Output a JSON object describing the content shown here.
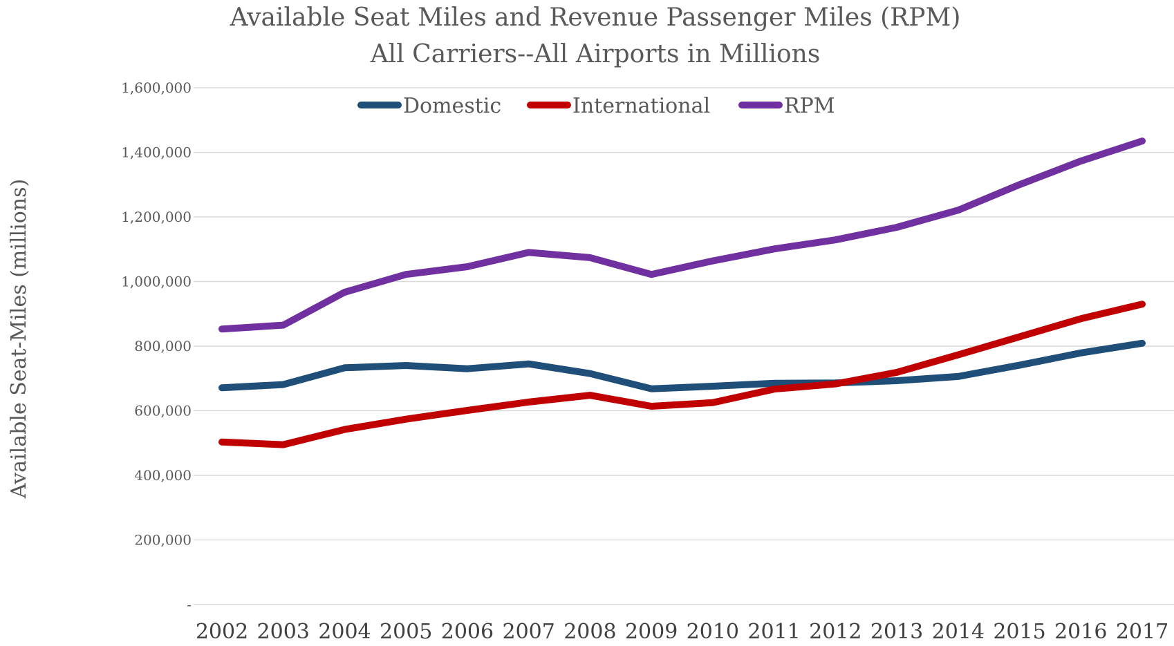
{
  "chart_data": {
    "type": "line",
    "title": [
      "Available Seat Miles and Revenue Passenger Miles (RPM)",
      "All Carriers--All Airports in Millions"
    ],
    "xlabel": "",
    "ylabel": "Available Seat-Miles (millions)",
    "ylim": [
      0,
      1600000
    ],
    "y_ticks": [
      0,
      200000,
      400000,
      600000,
      800000,
      1000000,
      1200000,
      1400000,
      1600000
    ],
    "y_tick_labels": [
      "-",
      "200,000",
      "400,000",
      "600,000",
      "800,000",
      "1,000,000",
      "1,200,000",
      "1,400,000",
      "1,600,000"
    ],
    "categories": [
      "2002",
      "2003",
      "2004",
      "2005",
      "2006",
      "2007",
      "2008",
      "2009",
      "2010",
      "2011",
      "2012",
      "2013",
      "2014",
      "2015",
      "2016",
      "2017"
    ],
    "grid": true,
    "legend_position": "top",
    "series": [
      {
        "name": "Domestic",
        "color": "#1f4e79",
        "values": [
          671000,
          681000,
          733000,
          740000,
          730000,
          745000,
          715000,
          668000,
          676000,
          685000,
          686000,
          693000,
          706000,
          741000,
          779000,
          809000
        ]
      },
      {
        "name": "International",
        "color": "#c00000",
        "values": [
          503000,
          495000,
          542000,
          574000,
          601000,
          627000,
          648000,
          614000,
          625000,
          667000,
          683000,
          719000,
          773000,
          829000,
          885000,
          930000
        ]
      },
      {
        "name": "RPM",
        "color": "#7030a0",
        "values": [
          853000,
          865000,
          967000,
          1022000,
          1046000,
          1090000,
          1074000,
          1022000,
          1064000,
          1101000,
          1129000,
          1168000,
          1221000,
          1300000,
          1373000,
          1435000
        ]
      }
    ]
  }
}
